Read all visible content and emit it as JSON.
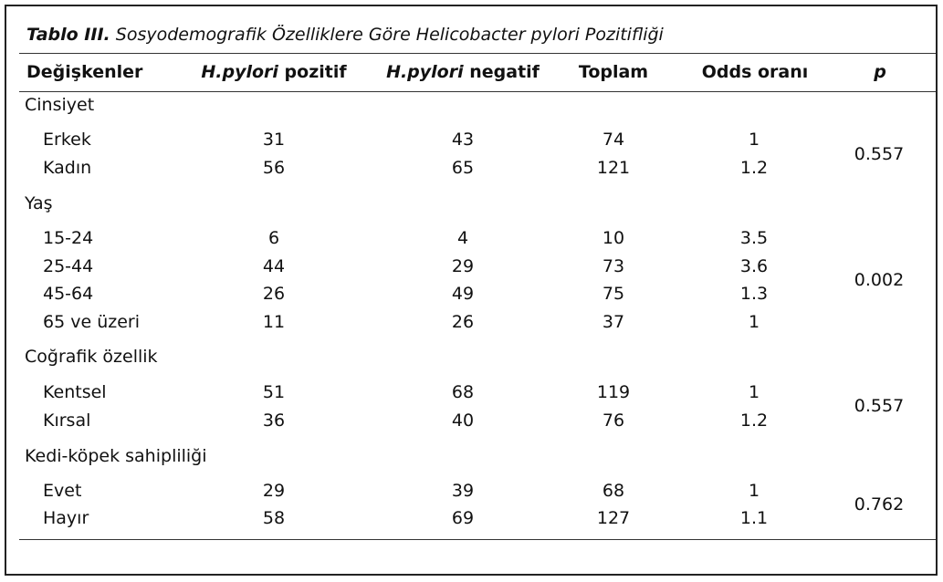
{
  "caption": {
    "label": "Tablo III.",
    "title": "Sosyodemografik Özelliklere Göre Helicobacter pylori Pozitifliği"
  },
  "headers": {
    "variables": "Değişkenler",
    "pos_italic": "H.pylori",
    "pos_rest": " pozitif",
    "neg_italic": "H.pylori",
    "neg_rest": " negatif",
    "total": "Toplam",
    "odds": "Odds oranı",
    "p": "p"
  },
  "sections": [
    {
      "title": "Cinsiyet",
      "p": "0.557",
      "rows": [
        {
          "label": "Erkek",
          "positive": "31",
          "negative": "43",
          "total": "74",
          "odds": "1"
        },
        {
          "label": "Kadın",
          "positive": "56",
          "negative": "65",
          "total": "121",
          "odds": "1.2"
        }
      ]
    },
    {
      "title": "Yaş",
      "p": "0.002",
      "rows": [
        {
          "label": "15-24",
          "positive": "6",
          "negative": "4",
          "total": "10",
          "odds": "3.5"
        },
        {
          "label": "25-44",
          "positive": "44",
          "negative": "29",
          "total": "73",
          "odds": "3.6"
        },
        {
          "label": "45-64",
          "positive": "26",
          "negative": "49",
          "total": "75",
          "odds": "1.3"
        },
        {
          "label": "65 ve üzeri",
          "positive": "11",
          "negative": "26",
          "total": "37",
          "odds": "1"
        }
      ]
    },
    {
      "title": "Coğrafik özellik",
      "p": "0.557",
      "rows": [
        {
          "label": "Kentsel",
          "positive": "51",
          "negative": "68",
          "total": "119",
          "odds": "1"
        },
        {
          "label": "Kırsal",
          "positive": "36",
          "negative": "40",
          "total": "76",
          "odds": "1.2"
        }
      ]
    },
    {
      "title": "Kedi-köpek sahipliliği",
      "p": "0.762",
      "rows": [
        {
          "label": "Evet",
          "positive": "29",
          "negative": "39",
          "total": "68",
          "odds": "1"
        },
        {
          "label": "Hayır",
          "positive": "58",
          "negative": "69",
          "total": "127",
          "odds": "1.1"
        }
      ]
    }
  ]
}
